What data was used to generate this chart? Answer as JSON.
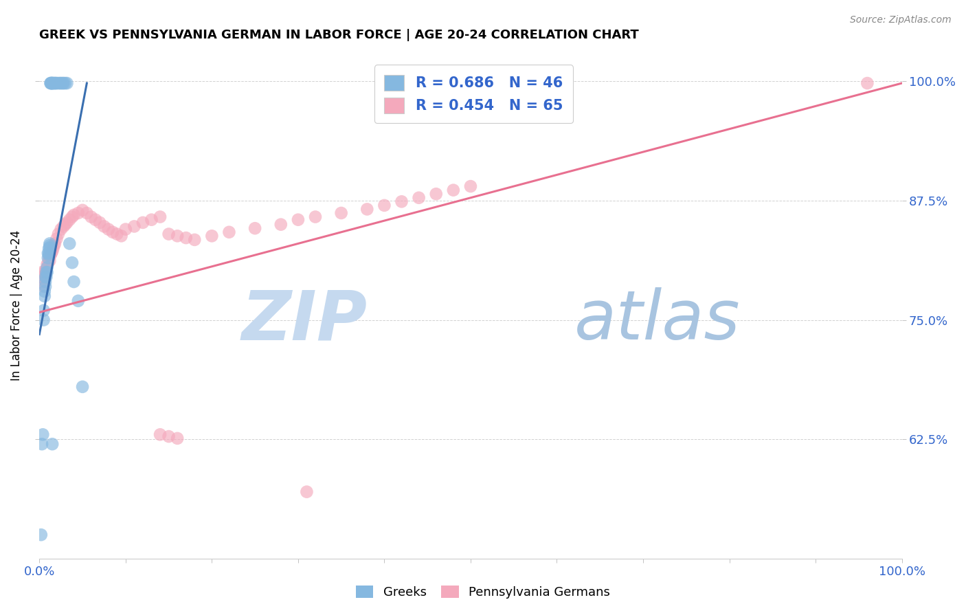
{
  "title": "GREEK VS PENNSYLVANIA GERMAN IN LABOR FORCE | AGE 20-24 CORRELATION CHART",
  "source": "Source: ZipAtlas.com",
  "ylabel": "In Labor Force | Age 20-24",
  "legend_r1": "R = 0.686   N = 46",
  "legend_r2": "R = 0.454   N = 65",
  "blue_color": "#85b8e0",
  "pink_color": "#f4a9bc",
  "blue_line_color": "#3a6fb0",
  "pink_line_color": "#e87090",
  "legend_text_color": "#3366cc",
  "tick_color": "#3366cc",
  "watermark_zip_color": "#c5d9ef",
  "watermark_atlas_color": "#a8c4e0",
  "greek_points_x": [
    0.002,
    0.003,
    0.004,
    0.005,
    0.005,
    0.006,
    0.006,
    0.007,
    0.007,
    0.007,
    0.008,
    0.008,
    0.009,
    0.009,
    0.01,
    0.01,
    0.011,
    0.011,
    0.011,
    0.012,
    0.012,
    0.012,
    0.013,
    0.013,
    0.014,
    0.014,
    0.015,
    0.015,
    0.016,
    0.017,
    0.018,
    0.019,
    0.02,
    0.022,
    0.024,
    0.025,
    0.027,
    0.028,
    0.03,
    0.032,
    0.035,
    0.038,
    0.04,
    0.045,
    0.05,
    0.015
  ],
  "greek_points_y": [
    0.525,
    0.62,
    0.63,
    0.75,
    0.76,
    0.775,
    0.78,
    0.79,
    0.785,
    0.795,
    0.8,
    0.795,
    0.805,
    0.8,
    0.82,
    0.815,
    0.825,
    0.82,
    0.818,
    0.83,
    0.826,
    0.828,
    0.998,
    0.998,
    0.998,
    0.998,
    0.998,
    0.998,
    0.998,
    0.998,
    0.998,
    0.998,
    0.998,
    0.998,
    0.998,
    0.998,
    0.998,
    0.998,
    0.998,
    0.998,
    0.83,
    0.81,
    0.79,
    0.77,
    0.68,
    0.62
  ],
  "penn_points_x": [
    0.002,
    0.003,
    0.004,
    0.005,
    0.006,
    0.007,
    0.008,
    0.009,
    0.01,
    0.011,
    0.012,
    0.013,
    0.014,
    0.015,
    0.016,
    0.017,
    0.018,
    0.02,
    0.022,
    0.025,
    0.028,
    0.03,
    0.032,
    0.035,
    0.038,
    0.04,
    0.045,
    0.05,
    0.055,
    0.06,
    0.065,
    0.07,
    0.075,
    0.08,
    0.085,
    0.09,
    0.095,
    0.1,
    0.11,
    0.12,
    0.13,
    0.14,
    0.15,
    0.16,
    0.17,
    0.18,
    0.2,
    0.22,
    0.25,
    0.28,
    0.3,
    0.32,
    0.35,
    0.38,
    0.4,
    0.42,
    0.44,
    0.46,
    0.48,
    0.5,
    0.14,
    0.15,
    0.16,
    0.31,
    0.96
  ],
  "penn_points_y": [
    0.795,
    0.8,
    0.79,
    0.785,
    0.8,
    0.798,
    0.803,
    0.808,
    0.81,
    0.815,
    0.812,
    0.818,
    0.82,
    0.822,
    0.825,
    0.828,
    0.83,
    0.835,
    0.84,
    0.845,
    0.848,
    0.85,
    0.852,
    0.855,
    0.858,
    0.86,
    0.862,
    0.865,
    0.862,
    0.858,
    0.855,
    0.852,
    0.848,
    0.845,
    0.842,
    0.84,
    0.838,
    0.845,
    0.848,
    0.852,
    0.855,
    0.858,
    0.84,
    0.838,
    0.836,
    0.834,
    0.838,
    0.842,
    0.846,
    0.85,
    0.855,
    0.858,
    0.862,
    0.866,
    0.87,
    0.874,
    0.878,
    0.882,
    0.886,
    0.89,
    0.63,
    0.628,
    0.626,
    0.57,
    0.998
  ],
  "xlim": [
    0.0,
    1.0
  ],
  "ylim": [
    0.5,
    1.03
  ],
  "yticks": [
    0.625,
    0.75,
    0.875,
    1.0
  ],
  "ytick_labels": [
    "62.5%",
    "75.0%",
    "87.5%",
    "100.0%"
  ],
  "xticks": [
    0.0,
    0.1,
    0.2,
    0.3,
    0.4,
    0.5,
    0.6,
    0.7,
    0.8,
    0.9,
    1.0
  ],
  "xtick_labels_show": [
    "0.0%",
    "",
    "",
    "",
    "",
    "",
    "",
    "",
    "",
    "",
    "100.0%"
  ],
  "figsize": [
    14.06,
    8.92
  ],
  "dpi": 100,
  "blue_regline_x": [
    0.0,
    0.055
  ],
  "blue_regline_y": [
    0.735,
    0.998
  ],
  "pink_regline_x": [
    0.0,
    1.0
  ],
  "pink_regline_y": [
    0.758,
    0.998
  ]
}
